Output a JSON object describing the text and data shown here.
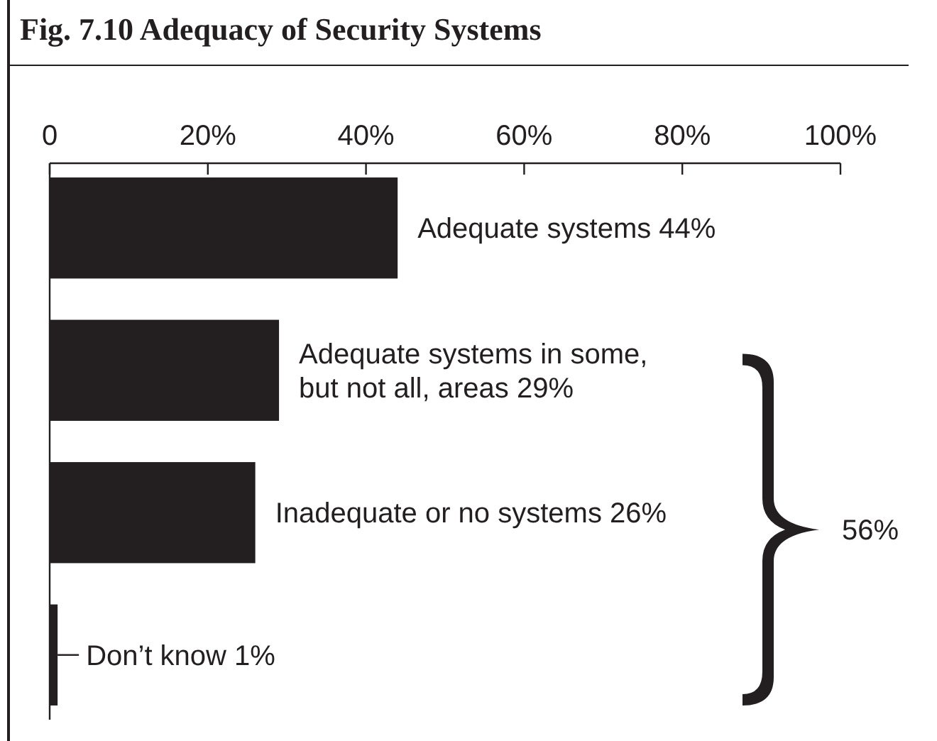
{
  "chart_data": {
    "type": "bar",
    "orientation": "horizontal",
    "title": "Fig. 7.10 Adequacy of Security Systems",
    "categories": [
      "Adequate systems",
      "Adequate systems in some, but not all, areas",
      "Inadequate or no systems",
      "Don’t know"
    ],
    "values": [
      44,
      29,
      26,
      1
    ],
    "value_labels": [
      "44%",
      "29%",
      "26%",
      "1%"
    ],
    "color": "#231f20",
    "xlim": [
      0,
      100
    ],
    "xticks": [
      0,
      {
        "value": 20,
        "label": "20%"
      },
      {
        "value": 40,
        "label": "40%"
      },
      {
        "value": 60,
        "label": "60%"
      },
      {
        "value": 80,
        "label": "80%"
      },
      {
        "value": 100,
        "label": "100%"
      }
    ],
    "annotations": [
      "56%"
    ]
  }
}
